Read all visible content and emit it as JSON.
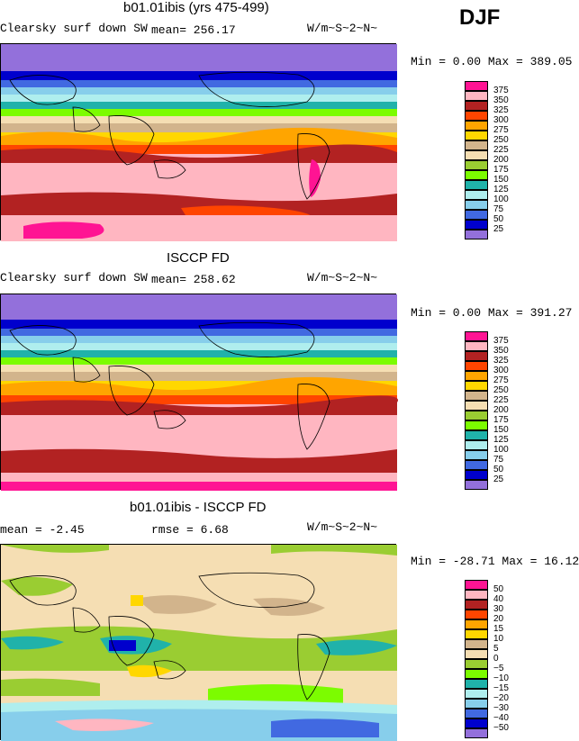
{
  "season": "DJF",
  "panels": [
    {
      "title": "b01.01ibis (yrs 475-499)",
      "subtitle_left": "Clearsky surf down SW",
      "stat1": "mean= 256.17",
      "units": "W/m~S~2~N~",
      "min_max": "Min =   0.00 Max = 389.05",
      "legend_levels": [
        "375",
        "350",
        "325",
        "300",
        "275",
        "250",
        "225",
        "200",
        "175",
        "150",
        "125",
        "100",
        "75",
        "50",
        "25"
      ],
      "legend_colors": [
        "#ff1493",
        "#ffb6c1",
        "#b22222",
        "#ff4500",
        "#ffa500",
        "#ffd700",
        "#d2b48c",
        "#f5deb3",
        "#9acd32",
        "#7cfc00",
        "#20b2aa",
        "#afeeee",
        "#87ceeb",
        "#4169e1",
        "#0000cd",
        "#9370db"
      ]
    },
    {
      "title": "ISCCP FD",
      "subtitle_left": "Clearsky surf down SW",
      "stat1": "mean= 258.62",
      "units": "W/m~S~2~N~",
      "min_max": "Min =   0.00 Max = 391.27",
      "legend_levels": [
        "375",
        "350",
        "325",
        "300",
        "275",
        "250",
        "225",
        "200",
        "175",
        "150",
        "125",
        "100",
        "75",
        "50",
        "25"
      ],
      "legend_colors": [
        "#ff1493",
        "#ffb6c1",
        "#b22222",
        "#ff4500",
        "#ffa500",
        "#ffd700",
        "#d2b48c",
        "#f5deb3",
        "#9acd32",
        "#7cfc00",
        "#20b2aa",
        "#afeeee",
        "#87ceeb",
        "#4169e1",
        "#0000cd",
        "#9370db"
      ]
    },
    {
      "title": "b01.01ibis - ISCCP FD",
      "stat1": "mean =  -2.45",
      "stat2": "rmse =   6.68",
      "units": "W/m~S~2~N~",
      "min_max": "Min = -28.71 Max =  16.12",
      "legend_levels": [
        "50",
        "40",
        "30",
        "20",
        "15",
        "10",
        "5",
        "0",
        "−5",
        "−10",
        "−15",
        "−20",
        "−30",
        "−40",
        "−50"
      ],
      "legend_colors": [
        "#ff1493",
        "#ffb6c1",
        "#b22222",
        "#ff4500",
        "#ffa500",
        "#ffd700",
        "#d2b48c",
        "#f5deb3",
        "#9acd32",
        "#7cfc00",
        "#20b2aa",
        "#afeeee",
        "#87ceeb",
        "#4169e1",
        "#0000cd",
        "#9370db"
      ]
    }
  ]
}
